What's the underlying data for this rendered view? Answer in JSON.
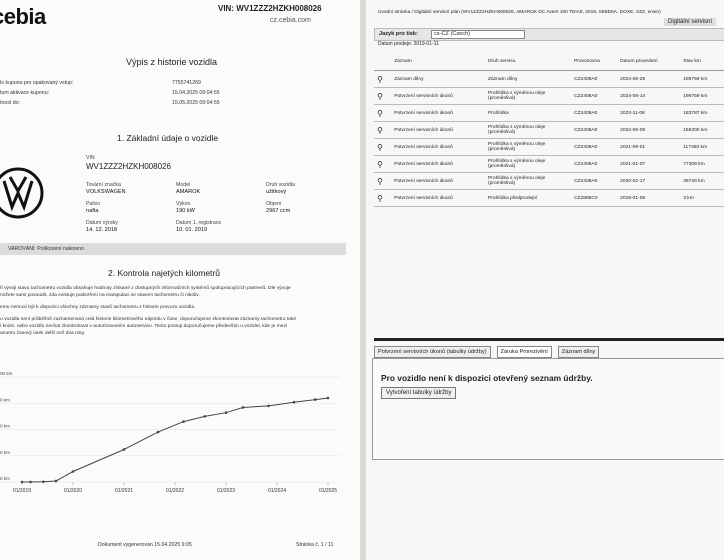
{
  "left_page": {
    "logo": "cebia",
    "vin_header": "VIN: WV1ZZZ2HZKH008026",
    "url": "cz.cebia.com",
    "title": "Výpis z historie vozidla",
    "info": [
      [
        "lo kuponu pro opakovaný vstup:",
        "7755741269"
      ],
      [
        "tum aktivace kuponu:",
        "15.04.2025 09:04:55"
      ],
      [
        "tnost do:",
        "15.05.2025 09:04:55"
      ]
    ],
    "section1": "1. Základní údaje o vozidle",
    "vin_label": "VIN",
    "vin_value": "WV1ZZZ2HZKH008026",
    "fields": [
      [
        "Tovární značka",
        "VOLKSWAGEN"
      ],
      [
        "Model",
        "AMAROK"
      ],
      [
        "Druh vozidla",
        "užitkový"
      ],
      [
        "Palivo",
        "nafta"
      ],
      [
        "Výkon",
        "190 kW"
      ],
      [
        "Objem",
        "2967 ccm"
      ],
      [
        "Datum výroby",
        "14. 12. 2018"
      ],
      [
        "Datum 1. registrace",
        "10. 01. 2019"
      ]
    ],
    "warning": "VAROVÁNÍ: Poškození nalezeno",
    "section2": "2. Kontrola najetých kilometrů",
    "paragraphs": [
      [
        "ři vývoji stavu tachometru vozidla obsahuje hodnoty získané z dostupných informačních systémů spolupracujících partnerů. Dle vývoje",
        "nožete sami posoudit, zda existuje podezření na manipulaci se stavem tachometru či nikoliv."
      ],
      [
        "emu nemusí být k dispozici všechny záznamy stavů tachometru z historie provozu vozidla."
      ],
      [
        "u vozidla není průběžně zaznamenaná celá historie kilometrového nájezdu v čase, doporučujeme zkontrolovat záznamy tachometru také",
        "í knize, nebo vozidlo nechat zkontrolovat v autorizovaném autoservisu. Tento postup doporučujeme především u vozidel, kde je mezi",
        "ametru časový úsek delší než dva roky."
      ]
    ],
    "mileage_chart": {
      "type": "line",
      "color": "#444444",
      "x": [
        "2019-01",
        "2019-03",
        "2019-06",
        "2019-09",
        "2020-01",
        "2021-01",
        "2021-09",
        "2022-03",
        "2022-08",
        "2023-01",
        "2023-05",
        "2023-11",
        "2024-05",
        "2024-10",
        "2025-01"
      ],
      "values": [
        0,
        0,
        500,
        2000,
        20000,
        62000,
        95000,
        115000,
        125000,
        132000,
        142000,
        145000,
        152000,
        157000,
        160000
      ],
      "xlim": [
        "2019-01",
        "2025-01"
      ],
      "xticks": [
        {
          "value": "2019-01",
          "label": "01/2019"
        },
        {
          "value": "2020-01",
          "label": "01/2020"
        },
        {
          "value": "2021-01",
          "label": "01/2021"
        },
        {
          "value": "2022-01",
          "label": "01/2022"
        },
        {
          "value": "2023-01",
          "label": "01/2023"
        },
        {
          "value": "2024-01",
          "label": "01/2024"
        },
        {
          "value": "2025-01",
          "label": "01/2025"
        }
      ],
      "ylim": [
        0,
        200000
      ],
      "yticks": [
        {
          "value": 0,
          "label": "0 km"
        },
        {
          "value": 50000,
          "label": "0 km"
        },
        {
          "value": 100000,
          "label": "0 km"
        },
        {
          "value": 150000,
          "label": "0 km"
        },
        {
          "value": 200000,
          "label": "00 km"
        }
      ],
      "grid": true
    },
    "footer_left": "Dokument vygenerován 15.04.2025 9:05",
    "footer_right": "Stránka č. 1 / 11"
  },
  "right_page": {
    "breadcrumb": "Úvodní stránka / Digitální servisní plán (WV1ZZZ2HZKH008026, AMAROK DC Avent 190 TDIA8, 2019, S6BD6A, DOXE, SZZ, erwin)",
    "tab_title": "Digitální servisní",
    "language_label": "Jazyk pro tisk:",
    "language_value": "cs-CZ (Czech)",
    "sale_date": "Datum prodeje: 2019-01-11",
    "table": {
      "headers": [
        "Záznam",
        "Druh servisu",
        "Provozovna",
        "Datum provedení",
        "Stav km"
      ],
      "rows": [
        [
          "Záznam dílny",
          "Záznam dílny",
          "CZ2408A0",
          "2024-08-29",
          "198759 km"
        ],
        [
          "Potvrzení servisních úkonů",
          "Prohlídka s výměnou oleje (proměnlivá)",
          "CZ2408A0",
          "2024-08-14",
          "198759 km"
        ],
        [
          "Potvrzení servisních úkonů",
          "Prohlídka",
          "CZ2408A0",
          "2023-11-08",
          "183787 km"
        ],
        [
          "Potvrzení servisních úkonů",
          "Prohlídka s výměnou oleje (proměnlivá)",
          "CZ2408A0",
          "2022-08-09",
          "156300 km"
        ],
        [
          "Potvrzení servisních úkonů",
          "Prohlídka s výměnou oleje (proměnlivá)",
          "CZ2408A0",
          "2021-09-01",
          "117350 km"
        ],
        [
          "Potvrzení servisních úkonů",
          "Prohlídka s výměnou oleje (proměnlivá)",
          "CZ2408A0",
          "2021-01-07",
          "77309 km"
        ],
        [
          "Potvrzení servisních úkonů",
          "Prohlídka s výměnou oleje (proměnlivá)",
          "CZ2408A0",
          "2020-02-17",
          "39728 km"
        ],
        [
          "Potvrzení servisních úkonů",
          "Prohlídka předprodejní",
          "CZ2885C0",
          "2019-01-08",
          "3 km"
        ]
      ]
    },
    "tabs": [
      "Potvrzení servisních úkonů (tabulky údržby)",
      "Záruka Prorezivění",
      "Záznam dílny"
    ],
    "message": "Pro vozidlo není k dispozici otevřený seznam údržby.",
    "button": "Vytvoření tabulky údržby"
  }
}
